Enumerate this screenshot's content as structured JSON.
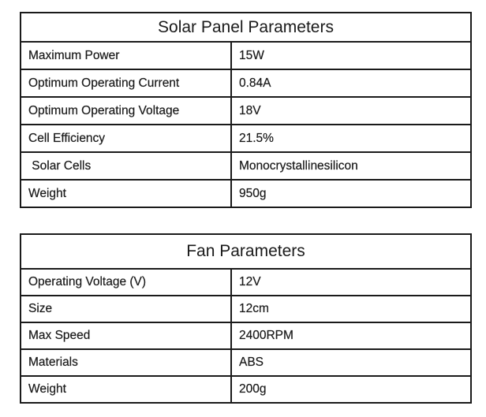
{
  "solar_panel": {
    "title": "Solar Panel Parameters",
    "rows": [
      {
        "label": "Maximum Power",
        "value": "15W"
      },
      {
        "label": "Optimum Operating Current",
        "value": "0.84A"
      },
      {
        "label": "Optimum Operating Voltage",
        "value": "18V"
      },
      {
        "label": "Cell Efficiency",
        "value": "21.5%"
      },
      {
        "label": " Solar Cells",
        "value": "Monocrystallinesilicon"
      },
      {
        "label": "Weight",
        "value": "950g"
      }
    ]
  },
  "fan": {
    "title": "Fan Parameters",
    "rows": [
      {
        "label": "Operating Voltage (V)",
        "value": "12V"
      },
      {
        "label": "Size",
        "value": "12cm"
      },
      {
        "label": "Max Speed",
        "value": "2400RPM"
      },
      {
        "label": "Materials",
        "value": "ABS"
      },
      {
        "label": "Weight",
        "value": "200g"
      }
    ]
  }
}
